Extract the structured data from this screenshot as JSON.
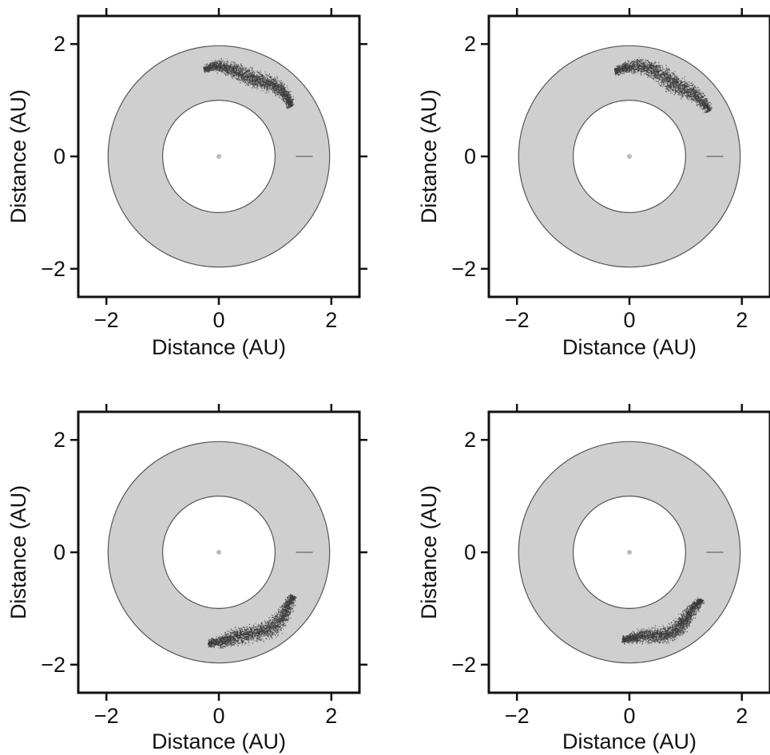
{
  "colors": {
    "ring_fill": "#cfcfcf",
    "ring_stroke": "#555555",
    "frame": "#111111",
    "points": "#3a3a3a",
    "sun": "#bbbbbb",
    "marker": "#777777"
  },
  "chart_data": [
    {
      "type": "scatter",
      "panel": "top-left",
      "xlabel": "Distance (AU)",
      "ylabel": "Distance (AU)",
      "xlim": [
        -2.5,
        2.5
      ],
      "ylim": [
        -2.5,
        2.5
      ],
      "x_ticks": [
        -2,
        0,
        2
      ],
      "y_ticks": [
        -2,
        0,
        2
      ],
      "x_tick_labels": [
        "−2",
        "0",
        "2"
      ],
      "y_tick_labels": [
        "−2",
        "0",
        "2"
      ],
      "grid": false,
      "legend": "none",
      "annulus": {
        "inner_radius": 1.0,
        "outer_radius": 1.97
      },
      "sun": [
        0,
        0
      ],
      "marker_segment": {
        "x": [
          1.37,
          1.67
        ],
        "y": 0
      },
      "cloud": {
        "angle_start_deg": 35,
        "angle_end_deg": 100,
        "radius_min": 1.35,
        "radius_max": 1.78,
        "density": "dense"
      }
    },
    {
      "type": "scatter",
      "panel": "top-right",
      "xlabel": "Distance (AU)",
      "ylabel": "Distance (AU)",
      "xlim": [
        -2.5,
        2.5
      ],
      "ylim": [
        -2.5,
        2.5
      ],
      "x_ticks": [
        -2,
        0,
        2
      ],
      "y_ticks": [
        -2,
        0,
        2
      ],
      "x_tick_labels": [
        "−2",
        "0",
        "2"
      ],
      "y_tick_labels": [
        "−2",
        "0",
        "2"
      ],
      "grid": false,
      "legend": "none",
      "annulus": {
        "inner_radius": 1.0,
        "outer_radius": 1.97
      },
      "sun": [
        0,
        0
      ],
      "marker_segment": {
        "x": [
          1.37,
          1.67
        ],
        "y": 0
      },
      "cloud": {
        "angle_start_deg": 30,
        "angle_end_deg": 100,
        "radius_min": 1.35,
        "radius_max": 1.8,
        "density": "dense"
      }
    },
    {
      "type": "scatter",
      "panel": "bottom-left",
      "xlabel": "Distance (AU)",
      "ylabel": "Distance (AU)",
      "xlim": [
        -2.5,
        2.5
      ],
      "ylim": [
        -2.5,
        2.5
      ],
      "x_ticks": [
        -2,
        0,
        2
      ],
      "y_ticks": [
        -2,
        0,
        2
      ],
      "x_tick_labels": [
        "−2",
        "0",
        "2"
      ],
      "y_tick_labels": [
        "−2",
        "0",
        "2"
      ],
      "grid": false,
      "legend": "none",
      "annulus": {
        "inner_radius": 1.0,
        "outer_radius": 1.97
      },
      "sun": [
        0,
        0
      ],
      "marker_segment": {
        "x": [
          1.37,
          1.67
        ],
        "y": 0
      },
      "cloud": {
        "angle_start_deg": -97,
        "angle_end_deg": -30,
        "radius_min": 1.35,
        "radius_max": 1.8,
        "density": "dense"
      }
    },
    {
      "type": "scatter",
      "panel": "bottom-right",
      "xlabel": "Distance (AU)",
      "ylabel": "Distance (AU)",
      "xlim": [
        -2.5,
        2.5
      ],
      "ylim": [
        -2.5,
        2.5
      ],
      "x_ticks": [
        -2,
        0,
        2
      ],
      "y_ticks": [
        -2,
        0,
        2
      ],
      "x_tick_labels": [
        "−2",
        "0",
        "2"
      ],
      "y_tick_labels": [
        "−2",
        "0",
        "2"
      ],
      "grid": false,
      "legend": "none",
      "annulus": {
        "inner_radius": 1.0,
        "outer_radius": 1.97
      },
      "sun": [
        0,
        0
      ],
      "marker_segment": {
        "x": [
          1.37,
          1.67
        ],
        "y": 0
      },
      "cloud": {
        "angle_start_deg": -95,
        "angle_end_deg": -33,
        "radius_min": 1.35,
        "radius_max": 1.75,
        "density": "dense"
      }
    }
  ]
}
